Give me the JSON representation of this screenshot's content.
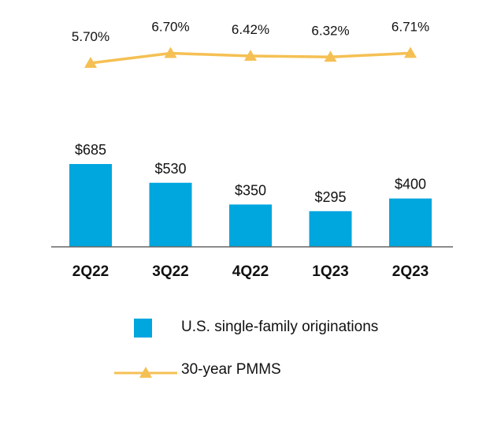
{
  "colors": {
    "bar": "#00a6de",
    "line": "#f5c053",
    "axis": "#666666",
    "text": "#111111"
  },
  "chart_data": {
    "type": "bar",
    "categories": [
      "2Q22",
      "3Q22",
      "4Q22",
      "1Q23",
      "2Q23"
    ],
    "series": [
      {
        "name": "U.S. single-family originations",
        "type": "bar",
        "values": [
          685,
          530,
          350,
          295,
          400
        ],
        "labels": [
          "$685",
          "$530",
          "$350",
          "$295",
          "$400"
        ]
      },
      {
        "name": "30-year PMMS",
        "type": "line",
        "values": [
          5.7,
          6.7,
          6.42,
          6.32,
          6.71
        ],
        "labels": [
          "5.70%",
          "6.70%",
          "6.42%",
          "6.32%",
          "6.71%"
        ]
      }
    ],
    "grid": false,
    "legend": "bottom"
  },
  "legend": {
    "bar_label": "U.S. single-family originations",
    "line_label": "30-year PMMS"
  }
}
